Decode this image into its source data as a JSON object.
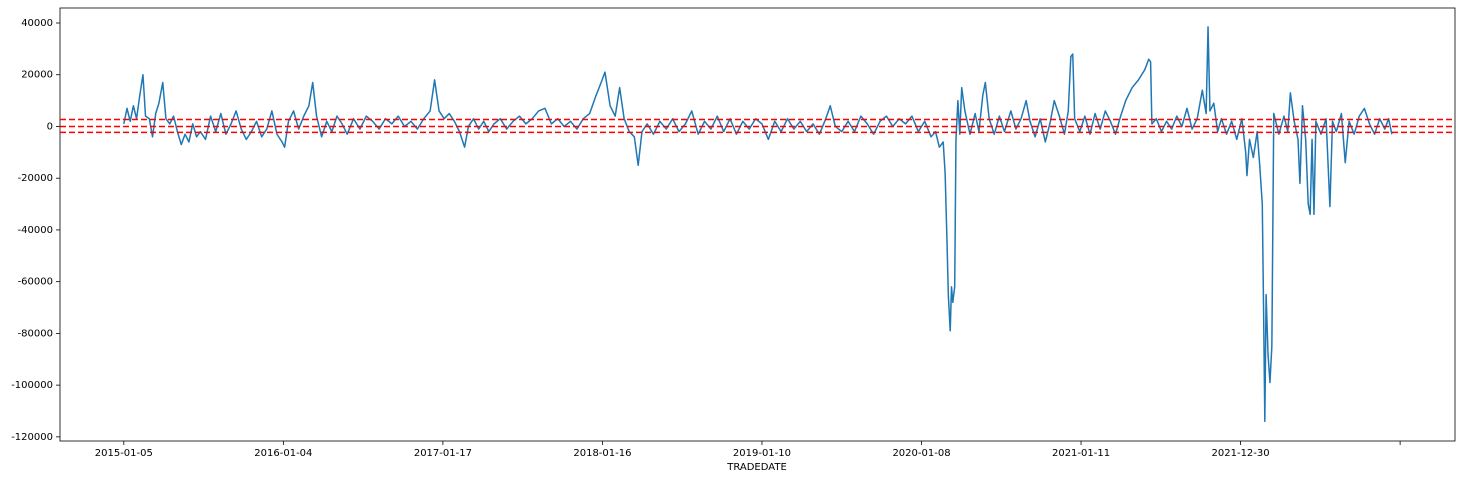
{
  "chart_data": {
    "type": "line",
    "x_label": "TRADEDATE",
    "color": "#1f77b4",
    "grid": false,
    "x": [
      0,
      5,
      10,
      15,
      20,
      25,
      30,
      34,
      40,
      45,
      50,
      55,
      61,
      66,
      72,
      78,
      84,
      90,
      96,
      102,
      108,
      114,
      120,
      128,
      136,
      144,
      152,
      160,
      168,
      176,
      184,
      192,
      200,
      208,
      216,
      224,
      232,
      240,
      248,
      252,
      258,
      266,
      274,
      282,
      290,
      296,
      302,
      310,
      318,
      326,
      334,
      342,
      350,
      360,
      370,
      380,
      390,
      400,
      410,
      420,
      430,
      440,
      450,
      460,
      470,
      480,
      487,
      494,
      502,
      510,
      518,
      526,
      534,
      540,
      548,
      556,
      564,
      572,
      580,
      590,
      600,
      610,
      620,
      630,
      640,
      650,
      660,
      670,
      680,
      690,
      700,
      710,
      720,
      730,
      740,
      748,
      754,
      762,
      770,
      777,
      784,
      792,
      800,
      806,
      812,
      820,
      830,
      840,
      850,
      860,
      870,
      880,
      890,
      900,
      910,
      920,
      930,
      940,
      950,
      960,
      970,
      980,
      990,
      1000,
      1010,
      1020,
      1030,
      1040,
      1050,
      1060,
      1070,
      1080,
      1090,
      1100,
      1107,
      1115,
      1125,
      1135,
      1145,
      1155,
      1165,
      1175,
      1185,
      1195,
      1205,
      1215,
      1225,
      1235,
      1245,
      1255,
      1265,
      1272,
      1278,
      1284,
      1287,
      1290,
      1292,
      1295,
      1297,
      1299,
      1302,
      1304,
      1307,
      1310,
      1313,
      1318,
      1326,
      1334,
      1340,
      1346,
      1350,
      1356,
      1364,
      1372,
      1380,
      1390,
      1398,
      1406,
      1414,
      1420,
      1428,
      1436,
      1444,
      1452,
      1458,
      1466,
      1474,
      1480,
      1484,
      1487,
      1490,
      1498,
      1506,
      1514,
      1522,
      1530,
      1538,
      1546,
      1554,
      1562,
      1570,
      1580,
      1590,
      1600,
      1606,
      1609,
      1611,
      1618,
      1626,
      1634,
      1642,
      1650,
      1658,
      1666,
      1674,
      1682,
      1690,
      1696,
      1699,
      1702,
      1708,
      1714,
      1720,
      1728,
      1736,
      1744,
      1752,
      1758,
      1760,
      1764,
      1770,
      1776,
      1780,
      1784,
      1786,
      1788,
      1790,
      1793,
      1796,
      1799,
      1802,
      1810,
      1818,
      1824,
      1828,
      1834,
      1840,
      1843,
      1847,
      1852,
      1856,
      1859,
      1862,
      1865,
      1868,
      1876,
      1884,
      1890,
      1894,
      1900,
      1908,
      1914,
      1920,
      1928,
      1936,
      1944,
      1952,
      1960,
      1968,
      1976,
      1982,
      1987
    ],
    "values": [
      1000,
      7000,
      2000,
      8000,
      3000,
      12000,
      20000,
      4000,
      3000,
      -4000,
      5000,
      9000,
      17000,
      3000,
      1000,
      4000,
      -2000,
      -7000,
      -3000,
      -6000,
      1000,
      -4000,
      -2000,
      -5000,
      4000,
      -2000,
      5000,
      -3000,
      1000,
      6000,
      -1000,
      -5000,
      -2000,
      2000,
      -4000,
      -1000,
      6000,
      -3000,
      -6000,
      -8000,
      2000,
      6000,
      -1000,
      4000,
      8000,
      17000,
      4000,
      -4000,
      2000,
      -2000,
      4000,
      1000,
      -3000,
      3000,
      -1000,
      4000,
      2000,
      -1000,
      3000,
      1000,
      4000,
      0,
      2000,
      -1000,
      3000,
      6000,
      18000,
      6000,
      3000,
      5000,
      2000,
      -2000,
      -8000,
      0,
      3000,
      -1000,
      2000,
      -2000,
      1000,
      3000,
      -1000,
      2000,
      4000,
      1000,
      3000,
      6000,
      7000,
      1000,
      3000,
      0,
      2000,
      -1000,
      3000,
      5000,
      12000,
      17000,
      21000,
      8000,
      4000,
      15000,
      3000,
      -2000,
      -4000,
      -15000,
      -2000,
      1000,
      -3000,
      2000,
      -1000,
      3000,
      -2000,
      1000,
      6000,
      -3000,
      2000,
      -1000,
      4000,
      -2000,
      3000,
      -3000,
      2000,
      -1000,
      3000,
      1000,
      -5000,
      2000,
      -2000,
      3000,
      -1000,
      2000,
      -2000,
      1000,
      -3000,
      3000,
      8000,
      0,
      -2000,
      2000,
      -2000,
      4000,
      1000,
      -3000,
      2000,
      4000,
      0,
      3000,
      1000,
      4000,
      -2000,
      2000,
      -4000,
      -2000,
      -8000,
      -6000,
      -18000,
      -45000,
      -65000,
      -79000,
      -62000,
      -68000,
      -62000,
      -5000,
      10000,
      -3000,
      15000,
      6000,
      -3000,
      5000,
      -2000,
      12000,
      17000,
      3000,
      -3000,
      4000,
      -2000,
      6000,
      -1000,
      3000,
      10000,
      2000,
      -4000,
      3000,
      -6000,
      2000,
      10000,
      4000,
      -3000,
      6000,
      27000,
      28000,
      3000,
      -2000,
      4000,
      -3000,
      5000,
      -1000,
      6000,
      2000,
      -3000,
      4000,
      10000,
      15000,
      18000,
      22000,
      26000,
      25000,
      1000,
      3000,
      -2000,
      2000,
      -1000,
      4000,
      0,
      7000,
      -1000,
      3000,
      14000,
      5000,
      38500,
      6000,
      9000,
      -2000,
      3000,
      -3000,
      2000,
      -5000,
      3000,
      -10000,
      -19000,
      -5000,
      -12000,
      -2000,
      -15000,
      -30000,
      -70000,
      -114000,
      -65000,
      -88000,
      -99000,
      -85000,
      5000,
      -3000,
      4000,
      -2000,
      13000,
      2000,
      -5000,
      -22000,
      8000,
      -5000,
      -30000,
      -34000,
      -5000,
      -34000,
      2000,
      -3000,
      3000,
      -31000,
      2000,
      -2000,
      5000,
      -14000,
      2000,
      -3000,
      4000,
      7000,
      1000,
      -3000,
      3000,
      -1000,
      3000,
      -3000
    ],
    "xlim": [
      -100,
      2086
    ],
    "xticks": [
      {
        "value": 0,
        "label": "2015-01-05"
      },
      {
        "value": 250,
        "label": "2016-01-04"
      },
      {
        "value": 500,
        "label": "2017-01-17"
      },
      {
        "value": 750,
        "label": "2018-01-16"
      },
      {
        "value": 1000,
        "label": "2019-01-10"
      },
      {
        "value": 1250,
        "label": "2020-01-08"
      },
      {
        "value": 1500,
        "label": "2021-01-11"
      },
      {
        "value": 1750,
        "label": "2021-12-30"
      },
      {
        "value": 2000,
        "label": null
      }
    ],
    "ylim": [
      -121600,
      45800
    ],
    "yticks": [
      -120000,
      -100000,
      -80000,
      -60000,
      -40000,
      -20000,
      0,
      20000,
      40000
    ],
    "hlines": [
      2700,
      0,
      -2300
    ],
    "hline_color": "#ff0000",
    "hline_style": "dashed"
  }
}
